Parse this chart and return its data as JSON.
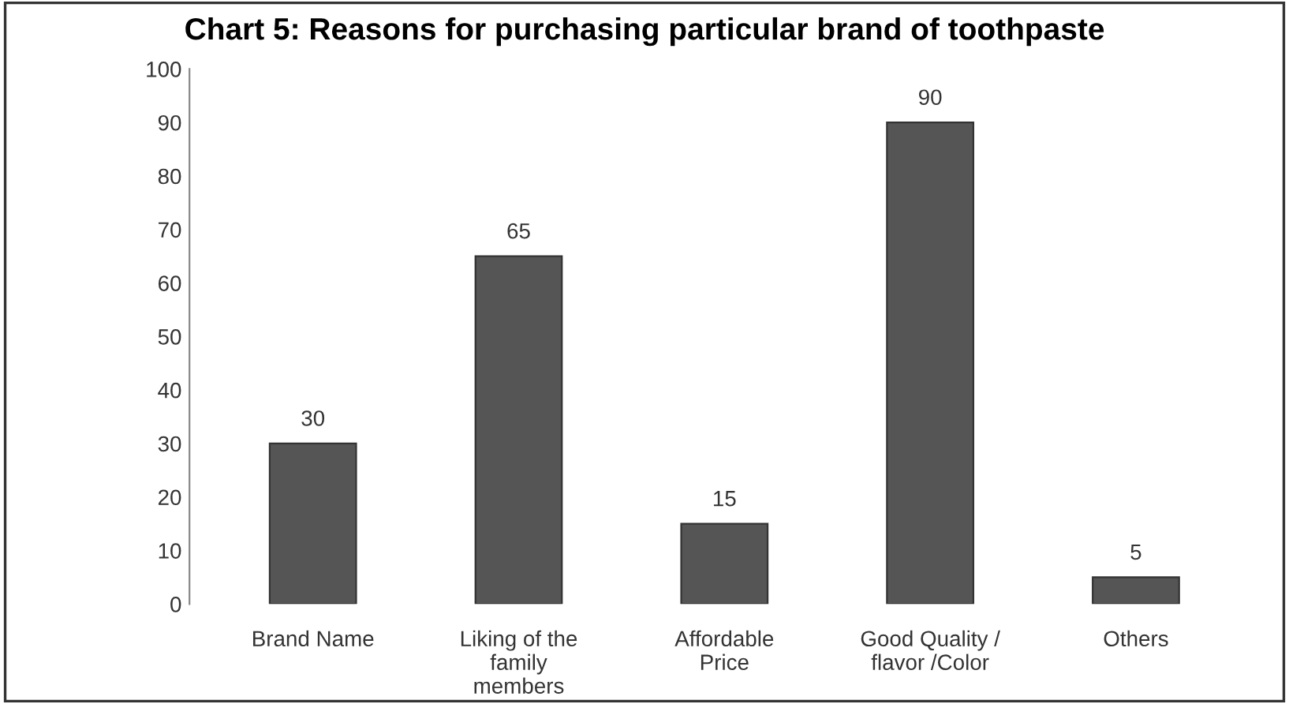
{
  "chart_data": {
    "type": "bar",
    "title": "Chart 5: Reasons for purchasing particular brand of toothpaste",
    "categories": [
      "Brand Name",
      "Liking of the\nfamily\nmembers",
      "Affordable\nPrice",
      "Good Quality /\nflavor /Color",
      "Others"
    ],
    "values": [
      30,
      65,
      15,
      90,
      5
    ],
    "color": "#555555",
    "ylim": [
      0,
      100
    ],
    "yticks": [
      0,
      10,
      20,
      30,
      40,
      50,
      60,
      70,
      80,
      90,
      100
    ],
    "grid": false,
    "data_labels": true
  }
}
